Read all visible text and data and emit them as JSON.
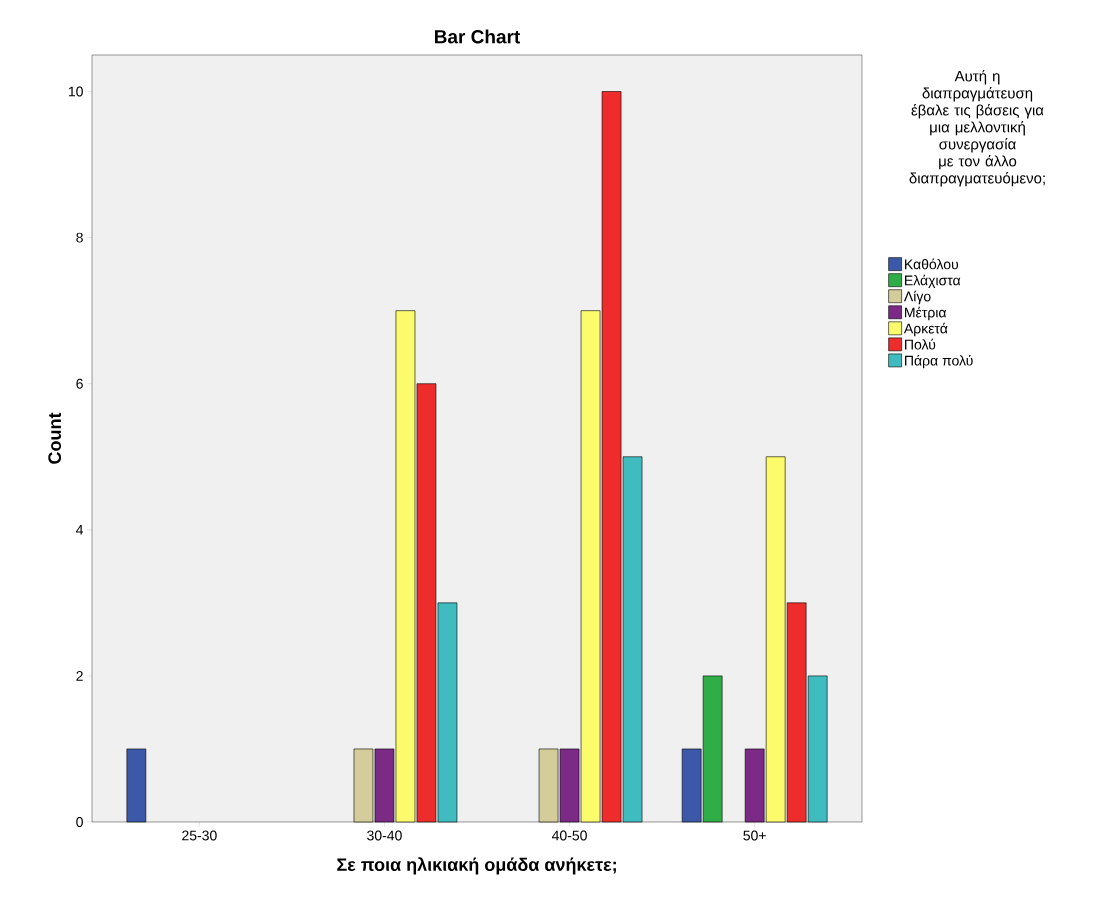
{
  "chart_data": {
    "type": "bar",
    "title": "Bar Chart",
    "xlabel": "Σε ποια ηλικιακή ομάδα ανήκετε;",
    "ylabel": "Count",
    "legend_title": "Αυτή η διαπραγμάτευση έβαλε τις βάσεις για μια μελλοντική συνεργασία με τον άλλο διαπραγματευόμενο;",
    "categories": [
      "25-30",
      "30-40",
      "40-50",
      "50+"
    ],
    "series": [
      {
        "name": "Καθόλου",
        "color": "#3c58a8",
        "values": [
          1,
          null,
          null,
          1
        ]
      },
      {
        "name": "Ελάχιστα",
        "color": "#2fae48",
        "values": [
          null,
          null,
          null,
          2
        ]
      },
      {
        "name": "Λίγο",
        "color": "#d4cc9a",
        "values": [
          null,
          1,
          1,
          null
        ]
      },
      {
        "name": "Μέτρια",
        "color": "#7b2a85",
        "values": [
          null,
          1,
          1,
          1
        ]
      },
      {
        "name": "Αρκετά",
        "color": "#fbfb6c",
        "values": [
          null,
          7,
          7,
          5
        ]
      },
      {
        "name": "Πολύ",
        "color": "#ee2c2c",
        "values": [
          null,
          6,
          10,
          3
        ]
      },
      {
        "name": "Πάρα πολύ",
        "color": "#40bcc0",
        "values": [
          null,
          3,
          5,
          2
        ]
      }
    ],
    "ylim": [
      0,
      10.5
    ],
    "yticks": [
      0,
      2,
      4,
      6,
      8,
      10
    ],
    "grid": false,
    "legend": "right"
  }
}
